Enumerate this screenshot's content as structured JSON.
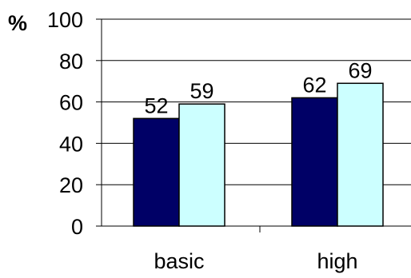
{
  "chart_data": {
    "type": "bar",
    "categories": [
      "basic",
      "high"
    ],
    "series": [
      {
        "values": [
          52,
          62
        ],
        "color": "#000066"
      },
      {
        "values": [
          59,
          69
        ],
        "color": "#ccffff"
      }
    ],
    "ylabel": "%",
    "ylim": [
      0,
      100
    ],
    "yticks": [
      0,
      20,
      40,
      60,
      80,
      100
    ],
    "grid": true,
    "legend": "none"
  }
}
